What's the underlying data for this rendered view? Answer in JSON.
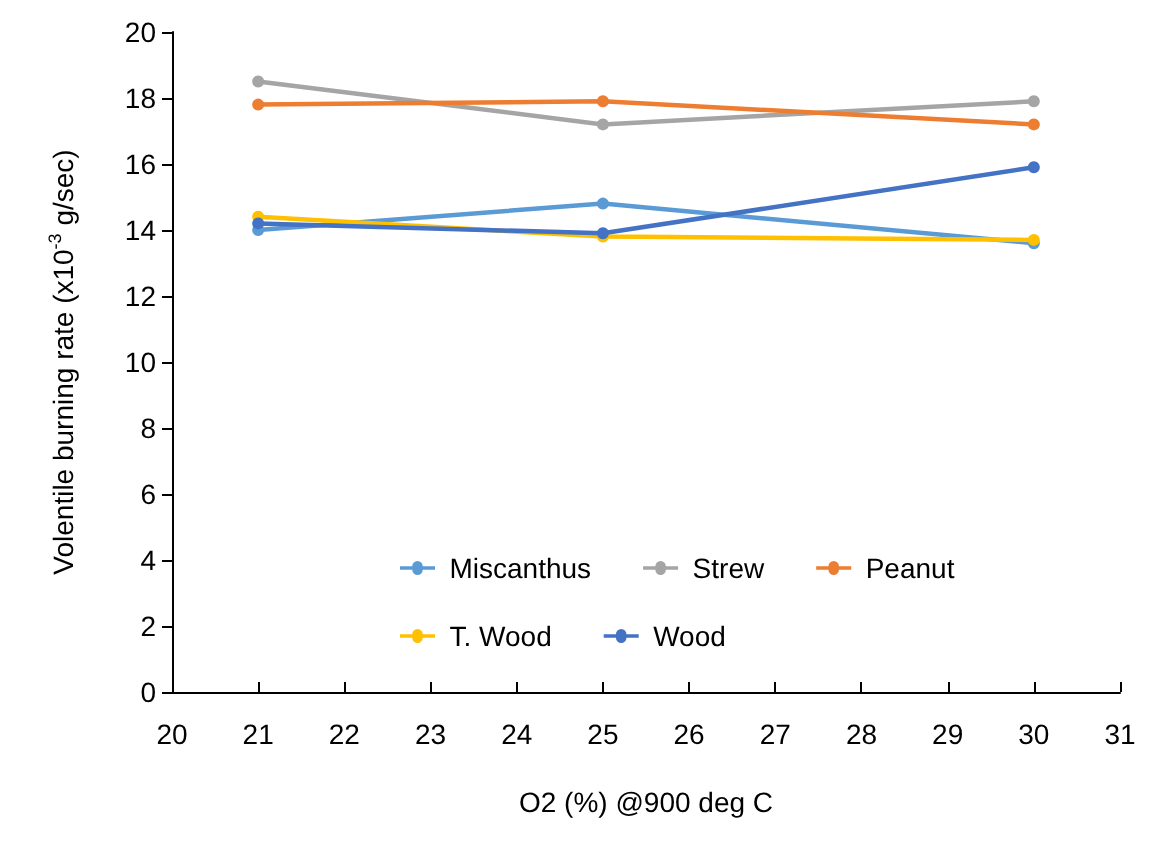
{
  "chart_data": {
    "type": "line",
    "xlabel": "O2 (%) @900 deg C",
    "ylabel": "Volentile burning rate (x10$^{-3}$ g/sec)",
    "x": [
      21,
      25,
      30
    ],
    "series": [
      {
        "name": "Miscanthus",
        "color": "#5b9bd5",
        "values": [
          14.0,
          14.8,
          13.6
        ]
      },
      {
        "name": "Strew",
        "color": "#a5a5a5",
        "values": [
          18.5,
          17.2,
          17.9
        ]
      },
      {
        "name": "Peanut",
        "color": "#ed7d31",
        "values": [
          17.8,
          17.9,
          17.2
        ]
      },
      {
        "name": "T. Wood",
        "color": "#ffc000",
        "values": [
          14.4,
          13.8,
          13.7
        ]
      },
      {
        "name": "Wood",
        "color": "#4472c4",
        "values": [
          14.2,
          13.9,
          15.9
        ]
      }
    ],
    "xlim": [
      20,
      31
    ],
    "xticks": [
      20,
      21,
      22,
      23,
      24,
      25,
      26,
      27,
      28,
      29,
      30,
      31
    ],
    "ylim": [
      0,
      20
    ],
    "yticks": [
      0,
      2,
      4,
      6,
      8,
      10,
      12,
      14,
      16,
      18,
      20
    ],
    "grid": false,
    "legend": "bottom",
    "marker": "circle",
    "line_style": "solid"
  }
}
